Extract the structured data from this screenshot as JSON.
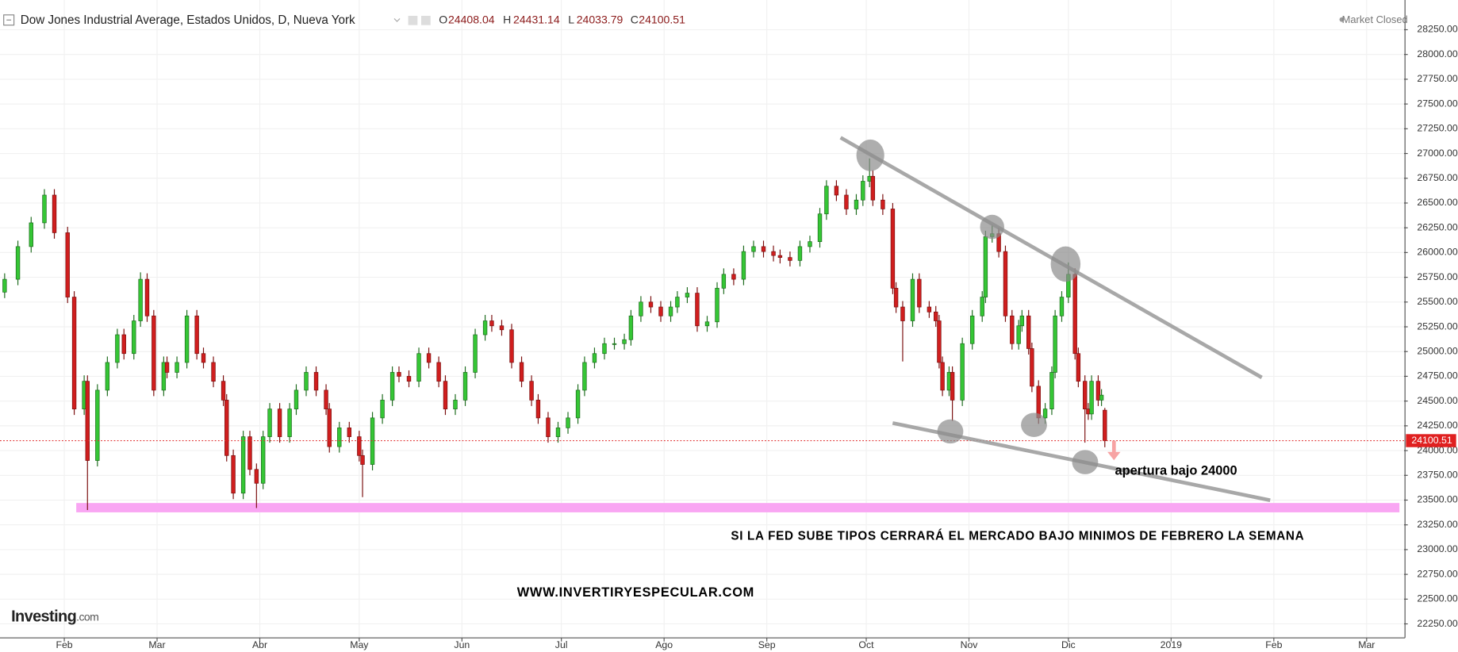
{
  "chart_data": {
    "type": "candlestick",
    "title": "Dow Jones Industrial Average, Estados Unidos, D, Nueva York",
    "ohlc_labels": [
      "O",
      "H",
      "L",
      "C"
    ],
    "status": "Market Closed",
    "brand": "Investing",
    "brand_suffix": ".com",
    "annotations": [
      "apertura bajo 24000",
      "SI LA FED SUBE TIPOS CERRARÁ EL  MERCADO BAJO MINIMOS DE FEBRERO LA SEMANA",
      "WWW.INVERTIRYESPECULAR.COM"
    ],
    "colors": {
      "up": "#35c635",
      "down": "#d01e1e"
    },
    "grid": true,
    "xlim": [
      11.6,
      435.3
    ],
    "xticks": [
      {
        "value": 31,
        "label": "Feb"
      },
      {
        "value": 59,
        "label": "Mar"
      },
      {
        "value": 90,
        "label": "Abr"
      },
      {
        "value": 120,
        "label": "May"
      },
      {
        "value": 151,
        "label": "Jun"
      },
      {
        "value": 181,
        "label": "Jul"
      },
      {
        "value": 212,
        "label": "Ago"
      },
      {
        "value": 243,
        "label": "Sep"
      },
      {
        "value": 273,
        "label": "Oct"
      },
      {
        "value": 304,
        "label": "Nov"
      },
      {
        "value": 334,
        "label": "Dic"
      },
      {
        "value": 365,
        "label": "2019"
      },
      {
        "value": 396,
        "label": "Feb"
      },
      {
        "value": 424,
        "label": "Mar"
      }
    ],
    "ylim": [
      22109,
      28550
    ],
    "yticks": [
      {
        "value": 22250,
        "label": "22250.00"
      },
      {
        "value": 22500,
        "label": "22500.00"
      },
      {
        "value": 22750,
        "label": "22750.00"
      },
      {
        "value": 23000,
        "label": "23000.00"
      },
      {
        "value": 23250,
        "label": "23250.00"
      },
      {
        "value": 23500,
        "label": "23500.00"
      },
      {
        "value": 23750,
        "label": "23750.00"
      },
      {
        "value": 24000,
        "label": "24000.00"
      },
      {
        "value": 24250,
        "label": "24250.00"
      },
      {
        "value": 24500,
        "label": "24500.00"
      },
      {
        "value": 24750,
        "label": "24750.00"
      },
      {
        "value": 25000,
        "label": "25000.00"
      },
      {
        "value": 25250,
        "label": "25250.00"
      },
      {
        "value": 25500,
        "label": "25500.00"
      },
      {
        "value": 25750,
        "label": "25750.00"
      },
      {
        "value": 26000,
        "label": "26000.00"
      },
      {
        "value": 26250,
        "label": "26250.00"
      },
      {
        "value": 26500,
        "label": "26500.00"
      },
      {
        "value": 26750,
        "label": "26750.00"
      },
      {
        "value": 27000,
        "label": "27000.00"
      },
      {
        "value": 27250,
        "label": "27250.00"
      },
      {
        "value": 27500,
        "label": "27500.00"
      },
      {
        "value": 27750,
        "label": "27750.00"
      },
      {
        "value": 28000,
        "label": "28000.00"
      },
      {
        "value": 28250,
        "label": "28250.00"
      }
    ],
    "x": [
      13,
      17,
      21,
      25,
      28,
      32,
      34,
      37,
      38,
      41,
      44,
      47,
      49,
      52,
      54,
      56,
      58,
      61,
      62,
      65,
      68,
      71,
      73,
      76,
      79,
      80,
      82,
      85,
      87,
      89,
      91,
      93,
      96,
      99,
      101,
      104,
      107,
      110,
      111,
      114,
      117,
      120,
      121,
      124,
      127,
      130,
      132,
      135,
      138,
      141,
      144,
      146,
      149,
      152,
      155,
      158,
      160,
      163,
      166,
      169,
      172,
      174,
      177,
      180,
      183,
      186,
      188,
      191,
      194,
      197,
      200,
      202,
      205,
      208,
      211,
      214,
      216,
      219,
      222,
      225,
      228,
      230,
      233,
      236,
      239,
      242,
      245,
      247,
      250,
      253,
      256,
      259,
      261,
      264,
      267,
      270,
      272,
      274,
      275,
      278,
      281,
      282,
      284,
      287,
      289,
      292,
      294,
      295,
      296,
      298,
      299,
      302,
      305,
      308,
      309,
      311,
      313,
      315,
      317,
      319,
      320,
      322,
      323,
      325,
      327,
      329,
      330,
      332,
      334,
      336,
      337,
      339,
      340,
      341,
      343,
      344,
      345
    ],
    "ohlc": [
      [
        25600,
        25790,
        25540,
        25730
      ],
      [
        25730,
        26120,
        25670,
        26060
      ],
      [
        26060,
        26360,
        26000,
        26300
      ],
      [
        26300,
        26640,
        26240,
        26580
      ],
      [
        26580,
        26640,
        26140,
        26200
      ],
      [
        26200,
        26260,
        25490,
        25550
      ],
      [
        25550,
        25610,
        24360,
        24420
      ],
      [
        24420,
        24760,
        24360,
        24700
      ],
      [
        24700,
        24760,
        23400,
        23900
      ],
      [
        23900,
        24670,
        23840,
        24610
      ],
      [
        24610,
        24950,
        24550,
        24890
      ],
      [
        24890,
        25230,
        24830,
        25170
      ],
      [
        25170,
        25230,
        24920,
        24980
      ],
      [
        24980,
        25370,
        24920,
        25310
      ],
      [
        25310,
        25800,
        25250,
        25730
      ],
      [
        25730,
        25790,
        25300,
        25360
      ],
      [
        25360,
        25420,
        24550,
        24610
      ],
      [
        24610,
        24950,
        24550,
        24890
      ],
      [
        24890,
        24950,
        24730,
        24790
      ],
      [
        24790,
        24950,
        24730,
        24890
      ],
      [
        24890,
        25420,
        24830,
        25360
      ],
      [
        25360,
        25420,
        24920,
        24980
      ],
      [
        24980,
        25040,
        24830,
        24890
      ],
      [
        24890,
        24950,
        24640,
        24700
      ],
      [
        24700,
        24760,
        24450,
        24510
      ],
      [
        24510,
        24570,
        23890,
        23950
      ],
      [
        23950,
        24010,
        23510,
        23570
      ],
      [
        23570,
        24200,
        23510,
        24140
      ],
      [
        24140,
        24200,
        23750,
        23810
      ],
      [
        23810,
        23870,
        23420,
        23670
      ],
      [
        23670,
        24200,
        23610,
        24140
      ],
      [
        24140,
        24480,
        24080,
        24420
      ],
      [
        24420,
        24480,
        24080,
        24140
      ],
      [
        24140,
        24480,
        24080,
        24420
      ],
      [
        24420,
        24670,
        24360,
        24610
      ],
      [
        24610,
        24850,
        24550,
        24790
      ],
      [
        24790,
        24850,
        24550,
        24610
      ],
      [
        24610,
        24670,
        24360,
        24420
      ],
      [
        24420,
        24480,
        23980,
        24040
      ],
      [
        24040,
        24290,
        23980,
        24230
      ],
      [
        24230,
        24290,
        24080,
        24140
      ],
      [
        24140,
        24200,
        23890,
        23950
      ],
      [
        23950,
        24010,
        23530,
        23860
      ],
      [
        23860,
        24390,
        23800,
        24330
      ],
      [
        24330,
        24570,
        24270,
        24510
      ],
      [
        24510,
        24850,
        24450,
        24790
      ],
      [
        24790,
        24850,
        24690,
        24750
      ],
      [
        24750,
        24810,
        24640,
        24700
      ],
      [
        24700,
        25040,
        24640,
        24980
      ],
      [
        24980,
        25040,
        24830,
        24890
      ],
      [
        24890,
        24950,
        24640,
        24700
      ],
      [
        24700,
        24760,
        24360,
        24420
      ],
      [
        24420,
        24570,
        24360,
        24510
      ],
      [
        24510,
        24850,
        24450,
        24790
      ],
      [
        24790,
        25230,
        24730,
        25170
      ],
      [
        25170,
        25370,
        25110,
        25310
      ],
      [
        25310,
        25370,
        25200,
        25260
      ],
      [
        25260,
        25320,
        25160,
        25220
      ],
      [
        25220,
        25280,
        24830,
        24890
      ],
      [
        24890,
        24950,
        24640,
        24700
      ],
      [
        24700,
        24760,
        24450,
        24510
      ],
      [
        24510,
        24570,
        24270,
        24330
      ],
      [
        24330,
        24390,
        24080,
        24140
      ],
      [
        24140,
        24290,
        24080,
        24230
      ],
      [
        24230,
        24390,
        24170,
        24330
      ],
      [
        24330,
        24670,
        24270,
        24610
      ],
      [
        24610,
        24950,
        24550,
        24890
      ],
      [
        24890,
        25040,
        24830,
        24980
      ],
      [
        24980,
        25140,
        24920,
        25080
      ],
      [
        25080,
        25140,
        25020,
        25080
      ],
      [
        25080,
        25180,
        25020,
        25120
      ],
      [
        25120,
        25420,
        25060,
        25360
      ],
      [
        25360,
        25560,
        25300,
        25500
      ],
      [
        25500,
        25560,
        25390,
        25450
      ],
      [
        25450,
        25510,
        25300,
        25360
      ],
      [
        25360,
        25510,
        25300,
        25450
      ],
      [
        25450,
        25610,
        25390,
        25550
      ],
      [
        25550,
        25650,
        25490,
        25590
      ],
      [
        25590,
        25650,
        25200,
        25260
      ],
      [
        25260,
        25360,
        25200,
        25300
      ],
      [
        25300,
        25700,
        25240,
        25640
      ],
      [
        25640,
        25840,
        25580,
        25780
      ],
      [
        25780,
        25840,
        25670,
        25730
      ],
      [
        25730,
        26070,
        25670,
        26010
      ],
      [
        26010,
        26120,
        25950,
        26060
      ],
      [
        26060,
        26120,
        25950,
        26010
      ],
      [
        26010,
        26070,
        25910,
        25970
      ],
      [
        25970,
        26030,
        25890,
        25950
      ],
      [
        25950,
        26010,
        25860,
        25920
      ],
      [
        25920,
        26120,
        25860,
        26060
      ],
      [
        26060,
        26170,
        26000,
        26110
      ],
      [
        26110,
        26450,
        26050,
        26390
      ],
      [
        26390,
        26730,
        26330,
        26670
      ],
      [
        26670,
        26730,
        26520,
        26580
      ],
      [
        26580,
        26640,
        26380,
        26440
      ],
      [
        26440,
        26590,
        26380,
        26530
      ],
      [
        26530,
        26780,
        26470,
        26720
      ],
      [
        26720,
        26950,
        26660,
        26770
      ],
      [
        26770,
        26830,
        26470,
        26530
      ],
      [
        26530,
        26590,
        26380,
        26440
      ],
      [
        26440,
        26500,
        25580,
        25640
      ],
      [
        25640,
        25700,
        25390,
        25450
      ],
      [
        25450,
        25510,
        24900,
        25310
      ],
      [
        25310,
        25790,
        25250,
        25730
      ],
      [
        25730,
        25790,
        25390,
        25450
      ],
      [
        25450,
        25510,
        25340,
        25400
      ],
      [
        25400,
        25460,
        25250,
        25310
      ],
      [
        25310,
        25370,
        24830,
        24890
      ],
      [
        24890,
        24950,
        24550,
        24610
      ],
      [
        24610,
        24850,
        24550,
        24790
      ],
      [
        24790,
        24850,
        24300,
        24510
      ],
      [
        24510,
        25140,
        24450,
        25080
      ],
      [
        25080,
        25420,
        25020,
        25360
      ],
      [
        25360,
        25610,
        25300,
        25550
      ],
      [
        25550,
        26220,
        25490,
        26160
      ],
      [
        26160,
        26280,
        26100,
        26190
      ],
      [
        26190,
        26250,
        25950,
        26010
      ],
      [
        26010,
        26070,
        25300,
        25360
      ],
      [
        25360,
        25420,
        25020,
        25080
      ],
      [
        25080,
        25320,
        25020,
        25260
      ],
      [
        25260,
        25420,
        25200,
        25360
      ],
      [
        25360,
        25420,
        24970,
        25030
      ],
      [
        25030,
        25090,
        24590,
        24650
      ],
      [
        24650,
        24710,
        24270,
        24330
      ],
      [
        24330,
        24480,
        24270,
        24420
      ],
      [
        24420,
        24850,
        24360,
        24790
      ],
      [
        24790,
        25420,
        24730,
        25360
      ],
      [
        25360,
        25610,
        25300,
        25550
      ],
      [
        25550,
        25900,
        25490,
        25780
      ],
      [
        25780,
        25840,
        24920,
        24980
      ],
      [
        24980,
        25040,
        24640,
        24700
      ],
      [
        24700,
        24760,
        24080,
        24420
      ],
      [
        24420,
        24480,
        24310,
        24370
      ],
      [
        24370,
        24760,
        24310,
        24700
      ],
      [
        24700,
        24760,
        24450,
        24510
      ],
      [
        24510,
        24620,
        24450,
        24560
      ],
      [
        24408.04,
        24431.14,
        24033.79,
        24100.51
      ]
    ]
  }
}
